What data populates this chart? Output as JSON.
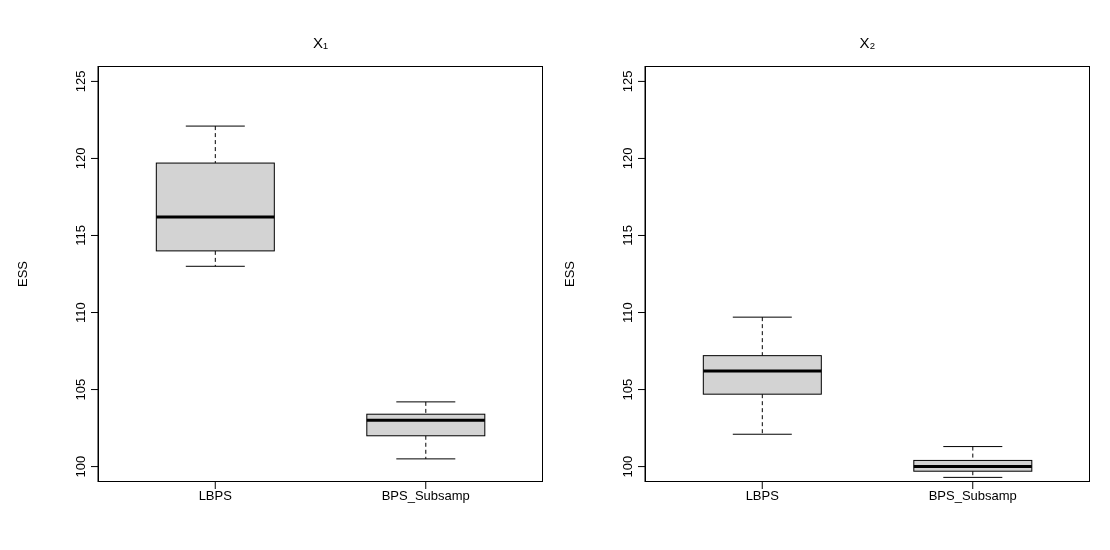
{
  "chart_data": [
    {
      "type": "box",
      "title": "X₁",
      "ylabel": "ESS",
      "categories": [
        "LBPS",
        "BPS_Subsamp"
      ],
      "color": "#d3d3d3",
      "boxes": [
        {
          "low": 113.0,
          "q1": 114.0,
          "median": 116.2,
          "q3": 119.7,
          "high": 122.1
        },
        {
          "low": 100.5,
          "q1": 102.0,
          "median": 103.0,
          "q3": 103.4,
          "high": 104.2
        }
      ],
      "ylim": [
        99,
        126
      ],
      "yticks": [
        100,
        105,
        110,
        115,
        120,
        125
      ],
      "grid": false
    },
    {
      "type": "box",
      "title": "X₂",
      "ylabel": "ESS",
      "categories": [
        "LBPS",
        "BPS_Subsamp"
      ],
      "color": "#d3d3d3",
      "boxes": [
        {
          "low": 102.1,
          "q1": 104.7,
          "median": 106.2,
          "q3": 107.2,
          "high": 109.7
        },
        {
          "low": 99.3,
          "q1": 99.7,
          "median": 100.0,
          "q3": 100.4,
          "high": 101.3
        }
      ],
      "ylim": [
        99,
        126
      ],
      "yticks": [
        100,
        105,
        110,
        115,
        120,
        125
      ],
      "grid": false
    }
  ]
}
